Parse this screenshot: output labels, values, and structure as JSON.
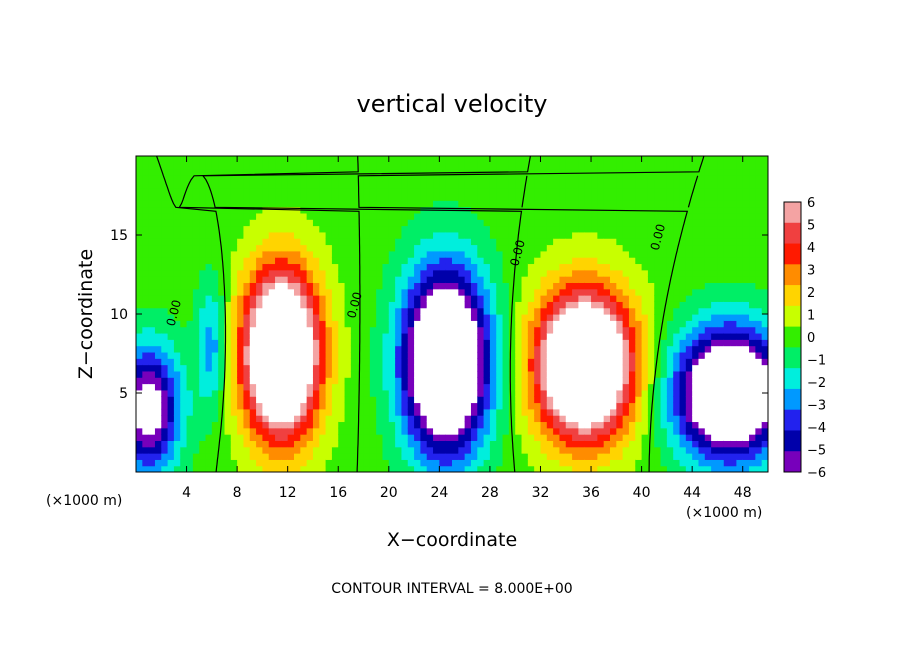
{
  "chart_data": {
    "type": "heatmap",
    "title": "vertical velocity",
    "xlabel": "X−coordinate",
    "ylabel": "Z−coordinate",
    "x_unit_left": "(×1000 m)",
    "x_unit_right": "(×1000 m)",
    "footer": "CONTOUR INTERVAL = 8.000E+00",
    "xlim": [
      0,
      50
    ],
    "ylim": [
      0,
      20
    ],
    "x_ticks": [
      4,
      8,
      12,
      16,
      20,
      24,
      28,
      32,
      36,
      40,
      44,
      48
    ],
    "x_tick_labels": [
      "4",
      "8",
      "12",
      "16",
      "20",
      "24",
      "28",
      "32",
      "36",
      "40",
      "44",
      "48"
    ],
    "y_ticks": [
      5,
      10,
      15
    ],
    "y_tick_labels": [
      "5",
      "10",
      "15"
    ],
    "colorbar": {
      "min": -6,
      "max": 6,
      "tick_values": [
        6,
        5,
        4,
        3,
        2,
        1,
        0,
        -1,
        -2,
        -3,
        -4,
        -5,
        -6
      ],
      "tick_labels": [
        "6",
        "5",
        "4",
        "3",
        "2",
        "1",
        "0",
        "−1",
        "−2",
        "−3",
        "−4",
        "−5",
        "−6"
      ],
      "colors": [
        "#f4a3a3",
        "#f04040",
        "#ff1a00",
        "#ff8c00",
        "#ffd400",
        "#c8ff00",
        "#33ee00",
        "#00ee66",
        "#00eedd",
        "#0099ff",
        "#2222ee",
        "#0000aa",
        "#7700bb"
      ]
    },
    "contour_labels": [
      {
        "x": 3.3,
        "y": 10,
        "text": "0.00"
      },
      {
        "x": 17.6,
        "y": 10.5,
        "text": "0.00"
      },
      {
        "x": 30.5,
        "y": 13.8,
        "text": "0.00"
      },
      {
        "x": 41.6,
        "y": 14.8,
        "text": "0.00"
      }
    ],
    "features": [
      {
        "name": "updraft-1",
        "x": 11.5,
        "z": 7.5,
        "amp": 12,
        "sx": 3.0,
        "sz": 5.2
      },
      {
        "name": "updraft-2",
        "x": 35.5,
        "z": 6.8,
        "amp": 12,
        "sx": 3.8,
        "sz": 4.6
      },
      {
        "name": "downdraft-1",
        "x": 24.5,
        "z": 7.0,
        "amp": -12,
        "sx": 3.3,
        "sz": 5.6
      },
      {
        "name": "downdraft-2",
        "x": 47.0,
        "z": 5.0,
        "amp": -11,
        "sx": 4.2,
        "sz": 4.0
      },
      {
        "name": "downdraft-3",
        "x": 1.0,
        "z": 4.0,
        "amp": -7,
        "sx": 2.5,
        "sz": 4.0
      },
      {
        "name": "downdraft-4",
        "x": 6.0,
        "z": 8.0,
        "amp": -3,
        "sx": 1.2,
        "sz": 4.0
      }
    ]
  }
}
